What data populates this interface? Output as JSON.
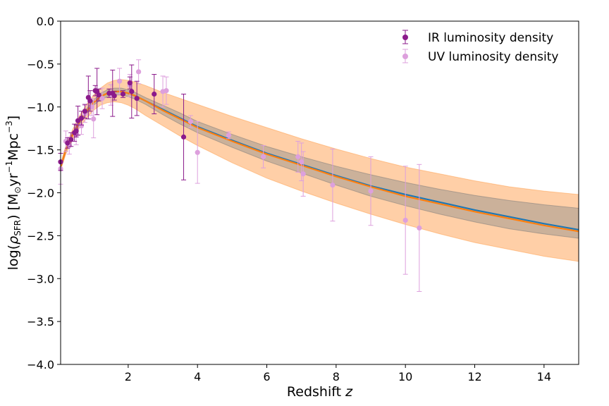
{
  "chart_data": {
    "type": "scatter",
    "title": "",
    "xlabel_main": "Redshift ",
    "xlabel_var": "z",
    "ylabel_main": "log(",
    "ylabel_rho": "ρ",
    "ylabel_sub": "SFR",
    "ylabel_units_open": ") [M",
    "ylabel_sun": "⊙",
    "ylabel_yr": "yr",
    "ylabel_exp1": "−1",
    "ylabel_mpc": "Mpc",
    "ylabel_exp2": "−3",
    "ylabel_close": "]",
    "xlim": [
      0.05,
      15
    ],
    "ylim": [
      -4.0,
      0.0
    ],
    "xticks": [
      2,
      4,
      6,
      8,
      10,
      12,
      14
    ],
    "xtick_labels": [
      "2",
      "4",
      "6",
      "8",
      "10",
      "12",
      "14"
    ],
    "yticks": [
      0.0,
      -0.5,
      -1.0,
      -1.5,
      -2.0,
      -2.5,
      -3.0,
      -3.5,
      -4.0
    ],
    "ytick_labels": [
      "0.0",
      "−0.5",
      "−1.0",
      "−1.5",
      "−2.0",
      "−2.5",
      "−3.0",
      "−3.5",
      "−4.0"
    ],
    "grid": false,
    "legend_position": "top-right",
    "colors": {
      "ir": "#8b1a8b",
      "uv": "#dda0dd",
      "line_blue": "#1f77b4",
      "line_orange": "#ff7f0e",
      "band_orange": "#ffbf8a",
      "band_grey": "#8c8c8c"
    },
    "series": [
      {
        "name": "IR luminosity density",
        "marker": "circle",
        "points": [
          {
            "x": 0.05,
            "y": -1.64,
            "err": 0.1
          },
          {
            "x": 0.25,
            "y": -1.42,
            "err": 0.06
          },
          {
            "x": 0.35,
            "y": -1.38,
            "err": 0.08
          },
          {
            "x": 0.45,
            "y": -1.3,
            "err": 0.1
          },
          {
            "x": 0.5,
            "y": -1.28,
            "err": 0.07
          },
          {
            "x": 0.55,
            "y": -1.16,
            "err": 0.17
          },
          {
            "x": 0.65,
            "y": -1.13,
            "err": 0.08
          },
          {
            "x": 0.75,
            "y": -1.05,
            "err": 0.08
          },
          {
            "x": 0.85,
            "y": -0.89,
            "err": 0.25
          },
          {
            "x": 0.9,
            "y": -0.93,
            "err": 0.12
          },
          {
            "x": 1.05,
            "y": -0.81,
            "err": 0.06
          },
          {
            "x": 1.1,
            "y": -0.82,
            "err": 0.27
          },
          {
            "x": 1.15,
            "y": -0.86,
            "err": 0.07
          },
          {
            "x": 1.45,
            "y": -0.84,
            "err": 0.05
          },
          {
            "x": 1.55,
            "y": -0.84,
            "err": 0.27
          },
          {
            "x": 1.6,
            "y": -0.87,
            "err": 0.05
          },
          {
            "x": 1.85,
            "y": -0.85,
            "err": 0.04
          },
          {
            "x": 2.05,
            "y": -0.72,
            "err": 0.07
          },
          {
            "x": 2.1,
            "y": -0.82,
            "err": 0.31
          },
          {
            "x": 2.25,
            "y": -0.9,
            "err": 0.2
          },
          {
            "x": 2.75,
            "y": -0.85,
            "err": 0.23
          },
          {
            "x": 3.6,
            "y": -1.35,
            "err": 0.5
          }
        ]
      },
      {
        "name": "UV luminosity density",
        "marker": "circle",
        "points": [
          {
            "x": 0.05,
            "y": -1.72,
            "err": 0.18
          },
          {
            "x": 0.2,
            "y": -1.4,
            "err": 0.12
          },
          {
            "x": 0.3,
            "y": -1.45,
            "err": 0.1
          },
          {
            "x": 0.5,
            "y": -1.32,
            "err": 0.12
          },
          {
            "x": 0.65,
            "y": -1.22,
            "err": 0.1
          },
          {
            "x": 0.75,
            "y": -1.08,
            "err": 0.1
          },
          {
            "x": 0.95,
            "y": -1.0,
            "err": 0.1
          },
          {
            "x": 1.0,
            "y": -1.14,
            "err": 0.22
          },
          {
            "x": 1.25,
            "y": -0.9,
            "err": 0.12
          },
          {
            "x": 1.5,
            "y": -0.86,
            "err": 0.12
          },
          {
            "x": 1.75,
            "y": -0.7,
            "err": 0.15
          },
          {
            "x": 2.05,
            "y": -0.75,
            "err": 0.13
          },
          {
            "x": 2.3,
            "y": -0.59,
            "err": 0.14
          },
          {
            "x": 3.0,
            "y": -0.82,
            "err": 0.18
          },
          {
            "x": 3.1,
            "y": -0.81,
            "err": 0.16
          },
          {
            "x": 3.8,
            "y": -1.17,
            "err": 0.07
          },
          {
            "x": 4.0,
            "y": -1.53,
            "err": 0.36
          },
          {
            "x": 4.9,
            "y": -1.33,
            "err": 0.04
          },
          {
            "x": 5.9,
            "y": -1.58,
            "err": 0.13
          },
          {
            "x": 6.9,
            "y": -1.58,
            "err": 0.18
          },
          {
            "x": 7.0,
            "y": -1.64,
            "err": 0.22
          },
          {
            "x": 7.05,
            "y": -1.78,
            "err": 0.26
          },
          {
            "x": 7.9,
            "y": -1.91,
            "err": 0.42
          },
          {
            "x": 9.0,
            "y": -1.98,
            "err": 0.4
          },
          {
            "x": 10.0,
            "y": -2.32,
            "err": 0.63
          },
          {
            "x": 10.4,
            "y": -2.41,
            "err": 0.74
          }
        ]
      }
    ],
    "fit_line_blue": {
      "x": [
        0.05,
        0.2,
        0.4,
        0.6,
        0.8,
        1.0,
        1.2,
        1.4,
        1.6,
        1.8,
        2.0,
        2.2,
        2.5,
        3.0,
        3.5,
        4.0,
        5.0,
        6.0,
        7.0,
        8.0,
        9.0,
        10.0,
        11.0,
        12.0,
        13.0,
        14.0,
        15.0
      ],
      "y": [
        -1.7,
        -1.5,
        -1.32,
        -1.17,
        -1.05,
        -0.95,
        -0.88,
        -0.84,
        -0.82,
        -0.82,
        -0.84,
        -0.87,
        -0.93,
        -1.03,
        -1.13,
        -1.23,
        -1.39,
        -1.54,
        -1.67,
        -1.8,
        -1.92,
        -2.02,
        -2.11,
        -2.2,
        -2.28,
        -2.36,
        -2.43
      ]
    },
    "fit_line_orange": {
      "x": [
        0.05,
        0.2,
        0.4,
        0.6,
        0.8,
        1.0,
        1.2,
        1.4,
        1.6,
        1.8,
        2.0,
        2.2,
        2.5,
        3.0,
        3.5,
        4.0,
        5.0,
        6.0,
        7.0,
        8.0,
        9.0,
        10.0,
        11.0,
        12.0,
        13.0,
        14.0,
        15.0
      ],
      "y": [
        -1.7,
        -1.5,
        -1.32,
        -1.17,
        -1.05,
        -0.95,
        -0.88,
        -0.84,
        -0.82,
        -0.82,
        -0.84,
        -0.87,
        -0.93,
        -1.04,
        -1.14,
        -1.24,
        -1.4,
        -1.55,
        -1.68,
        -1.81,
        -1.93,
        -2.04,
        -2.13,
        -2.22,
        -2.3,
        -2.38,
        -2.45
      ]
    },
    "band_outer": {
      "x": [
        0.05,
        0.2,
        0.4,
        0.6,
        0.8,
        1.0,
        1.2,
        1.4,
        1.6,
        1.8,
        2.0,
        2.2,
        2.5,
        3.0,
        3.5,
        4.0,
        5.0,
        6.0,
        7.0,
        8.0,
        9.0,
        10.0,
        11.0,
        12.0,
        13.0,
        14.0,
        15.0
      ],
      "upper": [
        -1.66,
        -1.45,
        -1.26,
        -1.1,
        -0.97,
        -0.86,
        -0.78,
        -0.72,
        -0.69,
        -0.68,
        -0.69,
        -0.71,
        -0.75,
        -0.83,
        -0.9,
        -0.97,
        -1.11,
        -1.24,
        -1.37,
        -1.49,
        -1.6,
        -1.7,
        -1.78,
        -1.86,
        -1.93,
        -1.98,
        -2.02
      ],
      "lower": [
        -1.74,
        -1.55,
        -1.38,
        -1.24,
        -1.13,
        -1.04,
        -0.98,
        -0.95,
        -0.94,
        -0.95,
        -0.98,
        -1.02,
        -1.1,
        -1.22,
        -1.34,
        -1.45,
        -1.65,
        -1.83,
        -1.98,
        -2.12,
        -2.25,
        -2.37,
        -2.48,
        -2.58,
        -2.66,
        -2.74,
        -2.8
      ]
    },
    "band_inner": {
      "x": [
        0.05,
        0.2,
        0.4,
        0.6,
        0.8,
        1.0,
        1.2,
        1.4,
        1.6,
        1.8,
        2.0,
        2.2,
        2.5,
        3.0,
        3.5,
        4.0,
        5.0,
        6.0,
        7.0,
        8.0,
        9.0,
        10.0,
        11.0,
        12.0,
        13.0,
        14.0,
        15.0
      ],
      "upper": [
        -1.68,
        -1.48,
        -1.3,
        -1.14,
        -1.02,
        -0.92,
        -0.84,
        -0.8,
        -0.78,
        -0.78,
        -0.8,
        -0.83,
        -0.89,
        -0.98,
        -1.07,
        -1.17,
        -1.32,
        -1.46,
        -1.58,
        -1.69,
        -1.79,
        -1.88,
        -1.96,
        -2.03,
        -2.09,
        -2.14,
        -2.18
      ],
      "lower": [
        -1.72,
        -1.52,
        -1.34,
        -1.2,
        -1.08,
        -0.98,
        -0.92,
        -0.88,
        -0.86,
        -0.86,
        -0.88,
        -0.91,
        -0.97,
        -1.09,
        -1.2,
        -1.3,
        -1.47,
        -1.63,
        -1.77,
        -1.91,
        -2.04,
        -2.15,
        -2.25,
        -2.34,
        -2.42,
        -2.48,
        -2.53
      ]
    }
  }
}
